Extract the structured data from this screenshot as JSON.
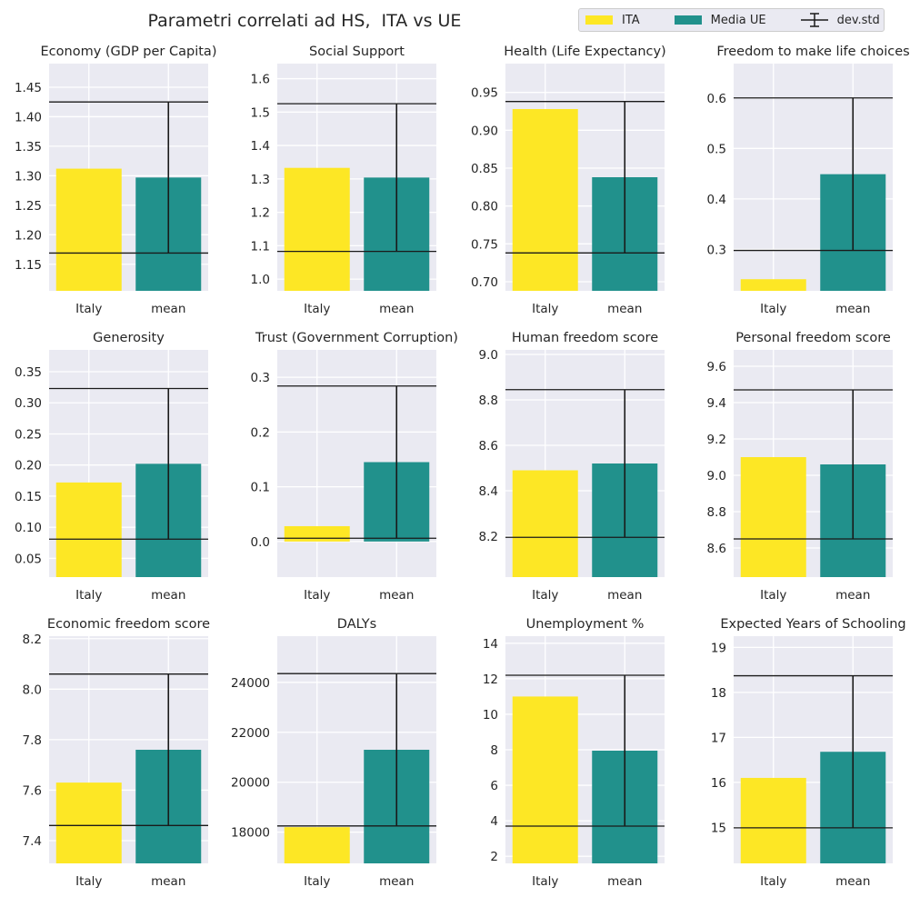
{
  "title": "Parametri correlati ad HS,  ITA vs UE",
  "legend": {
    "placement": "top-right",
    "items": [
      {
        "label": "ITA",
        "kind": "bar",
        "color": "#fde725"
      },
      {
        "label": "Media UE",
        "kind": "bar",
        "color": "#21918c"
      },
      {
        "label": "dev.std",
        "kind": "errorbar",
        "color": "#1a1a1a"
      }
    ]
  },
  "colors": {
    "ita": "#fde725",
    "mean": "#21918c",
    "errorbar": "#1a1a1a",
    "background": "#eaeaf2",
    "grid": "#ffffff"
  },
  "chart_data": [
    {
      "type": "bar",
      "title": "Economy (GDP per Capita)",
      "categories": [
        "Italy",
        "mean"
      ],
      "values": [
        1.312,
        1.297
      ],
      "std": 0.128,
      "ylim": [
        1.105,
        1.49
      ],
      "yticks": [
        1.15,
        1.2,
        1.25,
        1.3,
        1.35,
        1.4,
        1.45
      ],
      "ytick_labels": [
        "1.15",
        "1.20",
        "1.25",
        "1.30",
        "1.35",
        "1.40",
        "1.45"
      ],
      "grid": true
    },
    {
      "type": "bar",
      "title": "Social Support",
      "categories": [
        "Italy",
        "mean"
      ],
      "values": [
        1.333,
        1.304
      ],
      "std": 0.221,
      "ylim": [
        0.965,
        1.645
      ],
      "yticks": [
        1.0,
        1.1,
        1.2,
        1.3,
        1.4,
        1.5,
        1.6
      ],
      "ytick_labels": [
        "1.0",
        "1.1",
        "1.2",
        "1.3",
        "1.4",
        "1.5",
        "1.6"
      ],
      "grid": true
    },
    {
      "type": "bar",
      "title": "Health (Life Expectancy)",
      "categories": [
        "Italy",
        "mean"
      ],
      "values": [
        0.928,
        0.838
      ],
      "std": 0.1,
      "ylim": [
        0.688,
        0.988
      ],
      "yticks": [
        0.7,
        0.75,
        0.8,
        0.85,
        0.9,
        0.95
      ],
      "ytick_labels": [
        "0.70",
        "0.75",
        "0.80",
        "0.85",
        "0.90",
        "0.95"
      ],
      "grid": true
    },
    {
      "type": "bar",
      "title": "Freedom to make life choices",
      "categories": [
        "Italy",
        "mean"
      ],
      "values": [
        0.241,
        0.449
      ],
      "std": 0.151,
      "ylim": [
        0.218,
        0.668
      ],
      "yticks": [
        0.3,
        0.4,
        0.5,
        0.6
      ],
      "ytick_labels": [
        "0.3",
        "0.4",
        "0.5",
        "0.6"
      ],
      "grid": true
    },
    {
      "type": "bar",
      "title": "Generosity",
      "categories": [
        "Italy",
        "mean"
      ],
      "values": [
        0.172,
        0.202
      ],
      "std": 0.121,
      "ylim": [
        0.02,
        0.385
      ],
      "yticks": [
        0.05,
        0.1,
        0.15,
        0.2,
        0.25,
        0.3,
        0.35
      ],
      "ytick_labels": [
        "0.05",
        "0.10",
        "0.15",
        "0.20",
        "0.25",
        "0.30",
        "0.35"
      ],
      "grid": true
    },
    {
      "type": "bar",
      "title": "Trust (Government Corruption)",
      "categories": [
        "Italy",
        "mean"
      ],
      "values": [
        0.028,
        0.145
      ],
      "std": 0.139,
      "ylim": [
        -0.065,
        0.35
      ],
      "yticks": [
        0.0,
        0.1,
        0.2,
        0.3
      ],
      "ytick_labels": [
        "0.0",
        "0.1",
        "0.2",
        "0.3"
      ],
      "grid": true
    },
    {
      "type": "bar",
      "title": "Human freedom score",
      "categories": [
        "Italy",
        "mean"
      ],
      "values": [
        8.49,
        8.52
      ],
      "std": 0.325,
      "ylim": [
        8.02,
        9.02
      ],
      "yticks": [
        8.2,
        8.4,
        8.6,
        8.8,
        9.0
      ],
      "ytick_labels": [
        "8.2",
        "8.4",
        "8.6",
        "8.8",
        "9.0"
      ],
      "grid": true
    },
    {
      "type": "bar",
      "title": "Personal freedom score",
      "categories": [
        "Italy",
        "mean"
      ],
      "values": [
        9.1,
        9.06
      ],
      "std": 0.41,
      "ylim": [
        8.44,
        9.69
      ],
      "yticks": [
        8.6,
        8.8,
        9.0,
        9.2,
        9.4,
        9.6
      ],
      "ytick_labels": [
        "8.6",
        "8.8",
        "9.0",
        "9.2",
        "9.4",
        "9.6"
      ],
      "grid": true
    },
    {
      "type": "bar",
      "title": "Economic freedom score",
      "categories": [
        "Italy",
        "mean"
      ],
      "values": [
        7.63,
        7.76
      ],
      "std": 0.3,
      "ylim": [
        7.31,
        8.21
      ],
      "yticks": [
        7.4,
        7.6,
        7.8,
        8.0,
        8.2
      ],
      "ytick_labels": [
        "7.4",
        "7.6",
        "7.8",
        "8.0",
        "8.2"
      ],
      "grid": true
    },
    {
      "type": "bar",
      "title": "DALYs",
      "categories": [
        "Italy",
        "mean"
      ],
      "values": [
        18200,
        21300
      ],
      "std": 3050,
      "ylim": [
        16750,
        25850
      ],
      "yticks": [
        18000,
        20000,
        22000,
        24000
      ],
      "ytick_labels": [
        "18000",
        "20000",
        "22000",
        "24000"
      ],
      "grid": true
    },
    {
      "type": "bar",
      "title": "Unemployment %",
      "categories": [
        "Italy",
        "mean"
      ],
      "values": [
        11.0,
        7.95
      ],
      "std": 4.25,
      "ylim": [
        1.6,
        14.4
      ],
      "yticks": [
        2,
        4,
        6,
        8,
        10,
        12,
        14
      ],
      "ytick_labels": [
        "2",
        "4",
        "6",
        "8",
        "10",
        "12",
        "14"
      ],
      "grid": true
    },
    {
      "type": "bar",
      "title": "Expected Years of Schooling",
      "categories": [
        "Italy",
        "mean"
      ],
      "values": [
        16.1,
        16.68
      ],
      "std": 1.69,
      "ylim": [
        14.2,
        19.25
      ],
      "yticks": [
        15,
        16,
        17,
        18,
        19
      ],
      "ytick_labels": [
        "15",
        "16",
        "17",
        "18",
        "19"
      ],
      "grid": true
    }
  ]
}
